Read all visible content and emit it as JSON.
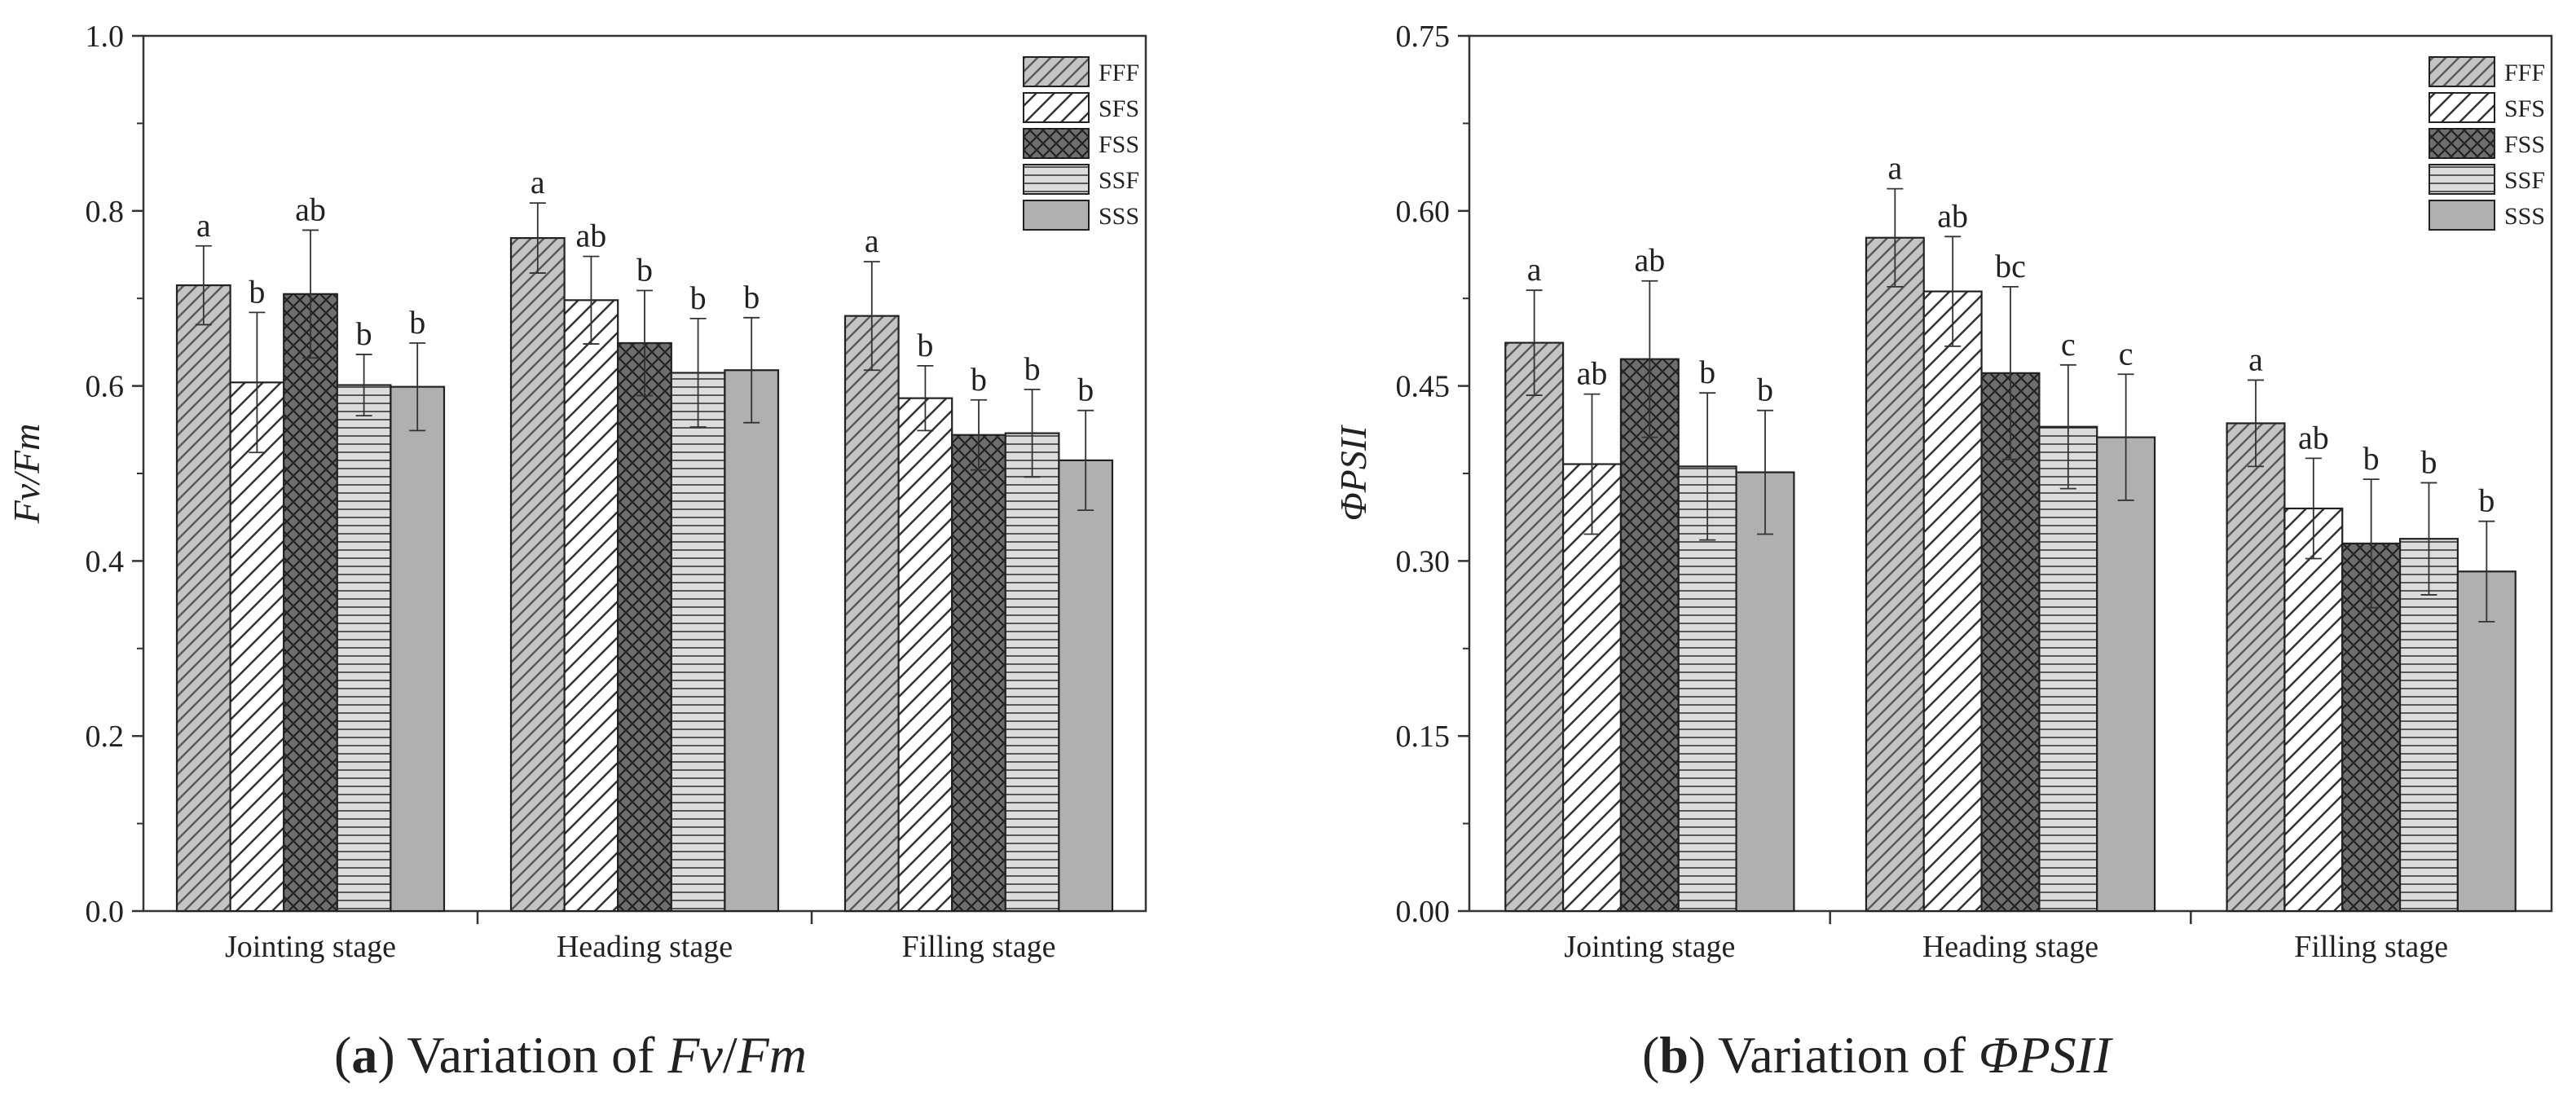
{
  "colors": {
    "FFF": "#c4c4c4",
    "SFS": "#ffffff",
    "FSS": "#6e6e6e",
    "SSF": "#dcdcdc",
    "SSS": "#b0b0b0",
    "axis": "#333333"
  },
  "captions": {
    "a": {
      "letter": "a",
      "text": "Variation of",
      "var1": "Fv",
      "slash": "/",
      "var2": "Fm"
    },
    "b": {
      "letter": "b",
      "text": "Variation of",
      "var": "ΦPSII"
    }
  },
  "chart_data": [
    {
      "type": "bar",
      "ylabel": "Fv/Fm",
      "ylim": [
        0,
        1.0
      ],
      "yticks": [
        "0.0",
        "0.2",
        "0.4",
        "0.6",
        "0.8",
        "1.0"
      ],
      "categories": [
        "Jointing stage",
        "Heading stage",
        "Filling stage"
      ],
      "legend_position": "top-right",
      "series": [
        {
          "name": "FFF",
          "values": [
            0.715,
            0.769,
            0.68
          ],
          "errors": [
            0.045,
            0.04,
            0.062
          ],
          "labels": [
            "a",
            "a",
            "a"
          ]
        },
        {
          "name": "SFS",
          "values": [
            0.604,
            0.698,
            0.586
          ],
          "errors": [
            0.08,
            0.05,
            0.037
          ],
          "labels": [
            "b",
            "ab",
            "b"
          ]
        },
        {
          "name": "FSS",
          "values": [
            0.705,
            0.649,
            0.544
          ],
          "errors": [
            0.073,
            0.06,
            0.04
          ],
          "labels": [
            "ab",
            "b",
            "b"
          ]
        },
        {
          "name": "SSF",
          "values": [
            0.601,
            0.615,
            0.546
          ],
          "errors": [
            0.035,
            0.062,
            0.05
          ],
          "labels": [
            "b",
            "b",
            "b"
          ]
        },
        {
          "name": "SSS",
          "values": [
            0.599,
            0.618,
            0.515
          ],
          "errors": [
            0.05,
            0.06,
            0.057
          ],
          "labels": [
            "b",
            "b",
            "b"
          ]
        }
      ]
    },
    {
      "type": "bar",
      "ylabel": "ΦPSII",
      "ylim": [
        0,
        0.75
      ],
      "yticks": [
        "0.00",
        "0.15",
        "0.30",
        "0.45",
        "0.60",
        "0.75"
      ],
      "categories": [
        "Jointing stage",
        "Heading stage",
        "Filling stage"
      ],
      "legend_position": "top-right",
      "series": [
        {
          "name": "FFF",
          "values": [
            0.487,
            0.577,
            0.418
          ],
          "errors": [
            0.045,
            0.042,
            0.037
          ],
          "labels": [
            "a",
            "a",
            "a"
          ]
        },
        {
          "name": "SFS",
          "values": [
            0.383,
            0.531,
            0.345
          ],
          "errors": [
            0.06,
            0.047,
            0.043
          ],
          "labels": [
            "ab",
            "ab",
            "ab"
          ]
        },
        {
          "name": "FSS",
          "values": [
            0.473,
            0.461,
            0.315
          ],
          "errors": [
            0.067,
            0.074,
            0.055
          ],
          "labels": [
            "ab",
            "bc",
            "b"
          ]
        },
        {
          "name": "SSF",
          "values": [
            0.381,
            0.415,
            0.319
          ],
          "errors": [
            0.063,
            0.053,
            0.048
          ],
          "labels": [
            "b",
            "c",
            "b"
          ]
        },
        {
          "name": "SSS",
          "values": [
            0.376,
            0.406,
            0.291
          ],
          "errors": [
            0.053,
            0.054,
            0.043
          ],
          "labels": [
            "b",
            "c",
            "b"
          ]
        }
      ]
    }
  ]
}
